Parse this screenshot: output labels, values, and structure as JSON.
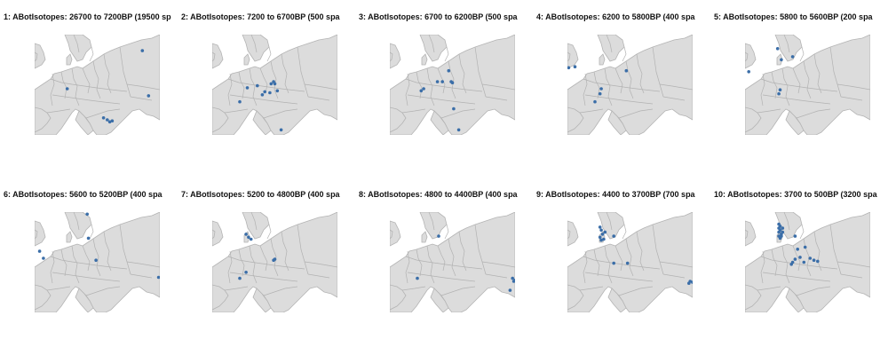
{
  "figure": {
    "colors": {
      "points": "#3b6ea8",
      "land": "#dcdcdc",
      "borders": "#b4b4b4",
      "background": "#ffffff"
    },
    "panels": [
      {
        "title": "1: ABotIsotopes: 26700 to 7200BP (19500 sp",
        "points": [
          [
            0.86,
            0.16
          ],
          [
            0.26,
            0.54
          ],
          [
            0.91,
            0.61
          ],
          [
            0.58,
            0.85
          ],
          [
            0.6,
            0.87
          ],
          [
            0.62,
            0.86
          ],
          [
            0.55,
            0.83
          ]
        ]
      },
      {
        "title": "2: ABotIsotopes: 7200 to 6700BP (500 spa",
        "points": [
          [
            0.28,
            0.53
          ],
          [
            0.36,
            0.51
          ],
          [
            0.47,
            0.49
          ],
          [
            0.49,
            0.47
          ],
          [
            0.5,
            0.49
          ],
          [
            0.52,
            0.56
          ],
          [
            0.46,
            0.58
          ],
          [
            0.42,
            0.57
          ],
          [
            0.22,
            0.67
          ],
          [
            0.55,
            0.95
          ],
          [
            0.4,
            0.6
          ]
        ]
      },
      {
        "title": "3: ABotIsotopes: 6700 to 6200BP (500 spa",
        "points": [
          [
            0.27,
            0.54
          ],
          [
            0.25,
            0.56
          ],
          [
            0.38,
            0.47
          ],
          [
            0.42,
            0.47
          ],
          [
            0.47,
            0.36
          ],
          [
            0.49,
            0.47
          ],
          [
            0.5,
            0.48
          ],
          [
            0.51,
            0.74
          ],
          [
            0.55,
            0.95
          ]
        ]
      },
      {
        "title": "4: ABotIsotopes: 6200 to 5800BP (400 spa",
        "points": [
          [
            0.01,
            0.33
          ],
          [
            0.06,
            0.32
          ],
          [
            0.47,
            0.36
          ],
          [
            0.27,
            0.54
          ],
          [
            0.26,
            0.59
          ],
          [
            0.22,
            0.67
          ]
        ]
      },
      {
        "title": "5: ABotIsotopes: 5800 to 5600BP (200 spa",
        "points": [
          [
            0.26,
            0.14
          ],
          [
            0.38,
            0.22
          ],
          [
            0.29,
            0.25
          ],
          [
            0.03,
            0.37
          ],
          [
            0.28,
            0.55
          ],
          [
            0.27,
            0.59
          ]
        ]
      },
      {
        "title": "6: ABotIsotopes: 5600 to 5200BP (400 spa",
        "points": [
          [
            0.42,
            0.02
          ],
          [
            0.43,
            0.26
          ],
          [
            0.04,
            0.39
          ],
          [
            0.07,
            0.46
          ],
          [
            0.49,
            0.48
          ],
          [
            0.99,
            0.65
          ]
        ]
      },
      {
        "title": "7: ABotIsotopes: 5200 to 4800BP (400 spa",
        "points": [
          [
            0.27,
            0.22
          ],
          [
            0.29,
            0.25
          ],
          [
            0.31,
            0.27
          ],
          [
            0.5,
            0.47
          ],
          [
            0.49,
            0.48
          ],
          [
            0.27,
            0.6
          ],
          [
            0.22,
            0.66
          ]
        ]
      },
      {
        "title": "8: ABotIsotopes: 4800 to 4400BP (400 spa",
        "points": [
          [
            0.39,
            0.24
          ],
          [
            0.22,
            0.66
          ],
          [
            0.98,
            0.66
          ],
          [
            1.0,
            0.68
          ],
          [
            0.99,
            0.69
          ],
          [
            0.96,
            0.78
          ]
        ]
      },
      {
        "title": "9: ABotIsotopes: 4400 to 3700BP (700 spa",
        "points": [
          [
            0.26,
            0.15
          ],
          [
            0.27,
            0.18
          ],
          [
            0.28,
            0.22
          ],
          [
            0.26,
            0.25
          ],
          [
            0.29,
            0.27
          ],
          [
            0.3,
            0.2
          ],
          [
            0.27,
            0.28
          ],
          [
            0.37,
            0.24
          ],
          [
            0.37,
            0.51
          ],
          [
            0.48,
            0.51
          ],
          [
            0.98,
            0.69
          ],
          [
            1.0,
            0.7
          ],
          [
            0.97,
            0.71
          ]
        ]
      },
      {
        "title": "10: ABotIsotopes: 3700 to 500BP (3200 spa",
        "points": [
          [
            0.27,
            0.12
          ],
          [
            0.28,
            0.14
          ],
          [
            0.27,
            0.16
          ],
          [
            0.28,
            0.18
          ],
          [
            0.27,
            0.2
          ],
          [
            0.29,
            0.22
          ],
          [
            0.27,
            0.24
          ],
          [
            0.28,
            0.26
          ],
          [
            0.3,
            0.16
          ],
          [
            0.3,
            0.2
          ],
          [
            0.29,
            0.24
          ],
          [
            0.4,
            0.24
          ],
          [
            0.48,
            0.35
          ],
          [
            0.42,
            0.37
          ],
          [
            0.44,
            0.45
          ],
          [
            0.52,
            0.46
          ],
          [
            0.55,
            0.48
          ],
          [
            0.58,
            0.49
          ],
          [
            0.4,
            0.47
          ],
          [
            0.38,
            0.5
          ],
          [
            0.37,
            0.52
          ],
          [
            0.47,
            0.5
          ]
        ]
      }
    ]
  }
}
